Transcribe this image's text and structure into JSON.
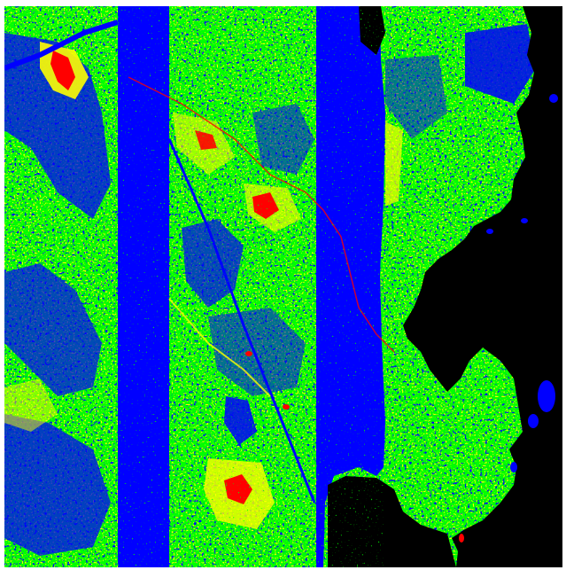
{
  "map": {
    "type": "classified-raster",
    "palette": {
      "background": "#ffffff",
      "nodata": "#000000",
      "water": "#0000ff",
      "vegetation": "#00ff00",
      "sparse": "#ffff00",
      "bare": "#ff0000"
    }
  }
}
